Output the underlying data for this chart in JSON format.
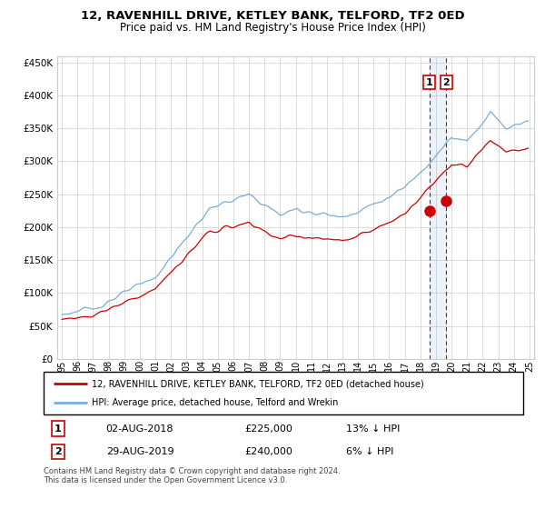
{
  "title": "12, RAVENHILL DRIVE, KETLEY BANK, TELFORD, TF2 0ED",
  "subtitle": "Price paid vs. HM Land Registry's House Price Index (HPI)",
  "legend_line1": "12, RAVENHILL DRIVE, KETLEY BANK, TELFORD, TF2 0ED (detached house)",
  "legend_line2": "HPI: Average price, detached house, Telford and Wrekin",
  "annotation1_date": "02-AUG-2018",
  "annotation1_price": "£225,000",
  "annotation1_hpi": "13% ↓ HPI",
  "annotation2_date": "29-AUG-2019",
  "annotation2_price": "£240,000",
  "annotation2_hpi": "6% ↓ HPI",
  "footer": "Contains HM Land Registry data © Crown copyright and database right 2024.\nThis data is licensed under the Open Government Licence v3.0.",
  "hpi_color": "#7aadd4",
  "price_color": "#cc0000",
  "dashed_color": "#cc0000",
  "ylim": [
    0,
    460000
  ],
  "yticks": [
    0,
    50000,
    100000,
    150000,
    200000,
    250000,
    300000,
    350000,
    400000,
    450000
  ],
  "background_color": "#ffffff",
  "grid_color": "#cccccc",
  "sale1_x": 2018.58,
  "sale1_y": 225000,
  "sale2_x": 2019.66,
  "sale2_y": 240000,
  "xlim_left": 1994.7,
  "xlim_right": 2025.3
}
